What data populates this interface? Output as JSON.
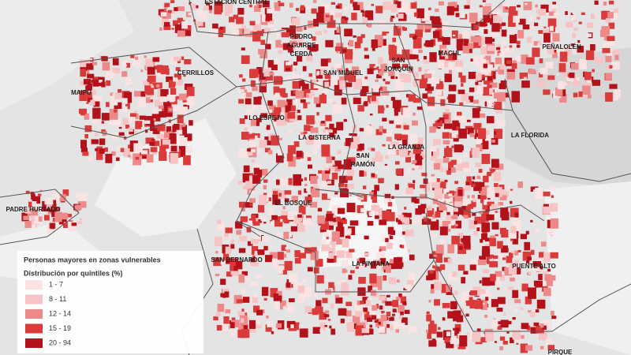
{
  "map": {
    "labels": [
      {
        "lines": [
          "ESTACIÓN CENTRAL"
        ]
      },
      {
        "lines": [
          "PEDRO",
          "AGUIRRE",
          "CERDA"
        ]
      },
      {
        "lines": [
          "MACUL"
        ]
      },
      {
        "lines": [
          "PEÑALOLÉN"
        ]
      },
      {
        "lines": [
          "MAIPÚ"
        ]
      },
      {
        "lines": [
          "CERRILLOS"
        ]
      },
      {
        "lines": [
          "SAN MIGUEL"
        ]
      },
      {
        "lines": [
          "SAN",
          "JOAQUÍN"
        ]
      },
      {
        "lines": [
          "LO ESPEJO"
        ]
      },
      {
        "lines": [
          "LA CISTERNA"
        ]
      },
      {
        "lines": [
          "LA GRANJA"
        ]
      },
      {
        "lines": [
          "LA FLORIDA"
        ]
      },
      {
        "lines": [
          "SAN",
          "RAMÓN"
        ]
      },
      {
        "lines": [
          "EL BOSQUE"
        ]
      },
      {
        "lines": [
          "PADRE HURTADO"
        ]
      },
      {
        "lines": [
          "SAN BERNARDO"
        ]
      },
      {
        "lines": [
          "LA PINTANA"
        ]
      },
      {
        "lines": [
          "PUENTE ALTO"
        ]
      },
      {
        "lines": [
          "PIRQUE"
        ]
      }
    ],
    "legend": {
      "title": "Personas mayores en zonas vulnerables",
      "subtitle": "Distribución por quintiles (%)",
      "items": [
        {
          "label": "1 - 7",
          "color": "#fbe3e3"
        },
        {
          "label": "8 - 11",
          "color": "#f6c4c4"
        },
        {
          "label": "12 - 14",
          "color": "#ec8a8a"
        },
        {
          "label": "15 - 19",
          "color": "#d93a3a"
        },
        {
          "label": "20 - 94",
          "color": "#b3121a"
        }
      ]
    }
  }
}
